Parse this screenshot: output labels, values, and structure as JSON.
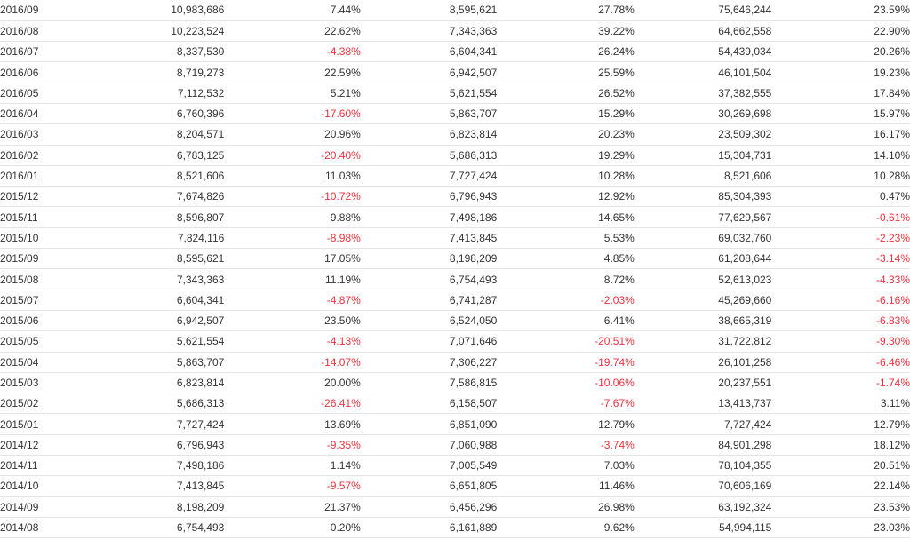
{
  "colors": {
    "text": "#333333",
    "negative": "#f0323c",
    "row_border": "#e4e4e4"
  },
  "rows": [
    {
      "month": "2016/09",
      "v1": "10,983,686",
      "p1": "7.44%",
      "v2": "8,595,621",
      "p2": "27.78%",
      "v3": "75,646,244",
      "p3": "23.59%"
    },
    {
      "month": "2016/08",
      "v1": "10,223,524",
      "p1": "22.62%",
      "v2": "7,343,363",
      "p2": "39.22%",
      "v3": "64,662,558",
      "p3": "22.90%"
    },
    {
      "month": "2016/07",
      "v1": "8,337,530",
      "p1": "-4.38%",
      "v2": "6,604,341",
      "p2": "26.24%",
      "v3": "54,439,034",
      "p3": "20.26%"
    },
    {
      "month": "2016/06",
      "v1": "8,719,273",
      "p1": "22.59%",
      "v2": "6,942,507",
      "p2": "25.59%",
      "v3": "46,101,504",
      "p3": "19.23%"
    },
    {
      "month": "2016/05",
      "v1": "7,112,532",
      "p1": "5.21%",
      "v2": "5,621,554",
      "p2": "26.52%",
      "v3": "37,382,555",
      "p3": "17.84%"
    },
    {
      "month": "2016/04",
      "v1": "6,760,396",
      "p1": "-17.60%",
      "v2": "5,863,707",
      "p2": "15.29%",
      "v3": "30,269,698",
      "p3": "15.97%"
    },
    {
      "month": "2016/03",
      "v1": "8,204,571",
      "p1": "20.96%",
      "v2": "6,823,814",
      "p2": "20.23%",
      "v3": "23,509,302",
      "p3": "16.17%"
    },
    {
      "month": "2016/02",
      "v1": "6,783,125",
      "p1": "-20.40%",
      "v2": "5,686,313",
      "p2": "19.29%",
      "v3": "15,304,731",
      "p3": "14.10%"
    },
    {
      "month": "2016/01",
      "v1": "8,521,606",
      "p1": "11.03%",
      "v2": "7,727,424",
      "p2": "10.28%",
      "v3": "8,521,606",
      "p3": "10.28%"
    },
    {
      "month": "2015/12",
      "v1": "7,674,826",
      "p1": "-10.72%",
      "v2": "6,796,943",
      "p2": "12.92%",
      "v3": "85,304,393",
      "p3": "0.47%"
    },
    {
      "month": "2015/11",
      "v1": "8,596,807",
      "p1": "9.88%",
      "v2": "7,498,186",
      "p2": "14.65%",
      "v3": "77,629,567",
      "p3": "-0.61%"
    },
    {
      "month": "2015/10",
      "v1": "7,824,116",
      "p1": "-8.98%",
      "v2": "7,413,845",
      "p2": "5.53%",
      "v3": "69,032,760",
      "p3": "-2.23%"
    },
    {
      "month": "2015/09",
      "v1": "8,595,621",
      "p1": "17.05%",
      "v2": "8,198,209",
      "p2": "4.85%",
      "v3": "61,208,644",
      "p3": "-3.14%"
    },
    {
      "month": "2015/08",
      "v1": "7,343,363",
      "p1": "11.19%",
      "v2": "6,754,493",
      "p2": "8.72%",
      "v3": "52,613,023",
      "p3": "-4.33%"
    },
    {
      "month": "2015/07",
      "v1": "6,604,341",
      "p1": "-4.87%",
      "v2": "6,741,287",
      "p2": "-2.03%",
      "v3": "45,269,660",
      "p3": "-6.16%"
    },
    {
      "month": "2015/06",
      "v1": "6,942,507",
      "p1": "23.50%",
      "v2": "6,524,050",
      "p2": "6.41%",
      "v3": "38,665,319",
      "p3": "-6.83%"
    },
    {
      "month": "2015/05",
      "v1": "5,621,554",
      "p1": "-4.13%",
      "v2": "7,071,646",
      "p2": "-20.51%",
      "v3": "31,722,812",
      "p3": "-9.30%"
    },
    {
      "month": "2015/04",
      "v1": "5,863,707",
      "p1": "-14.07%",
      "v2": "7,306,227",
      "p2": "-19.74%",
      "v3": "26,101,258",
      "p3": "-6.46%"
    },
    {
      "month": "2015/03",
      "v1": "6,823,814",
      "p1": "20.00%",
      "v2": "7,586,815",
      "p2": "-10.06%",
      "v3": "20,237,551",
      "p3": "-1.74%"
    },
    {
      "month": "2015/02",
      "v1": "5,686,313",
      "p1": "-26.41%",
      "v2": "6,158,507",
      "p2": "-7.67%",
      "v3": "13,413,737",
      "p3": "3.11%"
    },
    {
      "month": "2015/01",
      "v1": "7,727,424",
      "p1": "13.69%",
      "v2": "6,851,090",
      "p2": "12.79%",
      "v3": "7,727,424",
      "p3": "12.79%"
    },
    {
      "month": "2014/12",
      "v1": "6,796,943",
      "p1": "-9.35%",
      "v2": "7,060,988",
      "p2": "-3.74%",
      "v3": "84,901,298",
      "p3": "18.12%"
    },
    {
      "month": "2014/11",
      "v1": "7,498,186",
      "p1": "1.14%",
      "v2": "7,005,549",
      "p2": "7.03%",
      "v3": "78,104,355",
      "p3": "20.51%"
    },
    {
      "month": "2014/10",
      "v1": "7,413,845",
      "p1": "-9.57%",
      "v2": "6,651,805",
      "p2": "11.46%",
      "v3": "70,606,169",
      "p3": "22.14%"
    },
    {
      "month": "2014/09",
      "v1": "8,198,209",
      "p1": "21.37%",
      "v2": "6,456,296",
      "p2": "26.98%",
      "v3": "63,192,324",
      "p3": "23.53%"
    },
    {
      "month": "2014/08",
      "v1": "6,754,493",
      "p1": "0.20%",
      "v2": "6,161,889",
      "p2": "9.62%",
      "v3": "54,994,115",
      "p3": "23.03%"
    }
  ]
}
